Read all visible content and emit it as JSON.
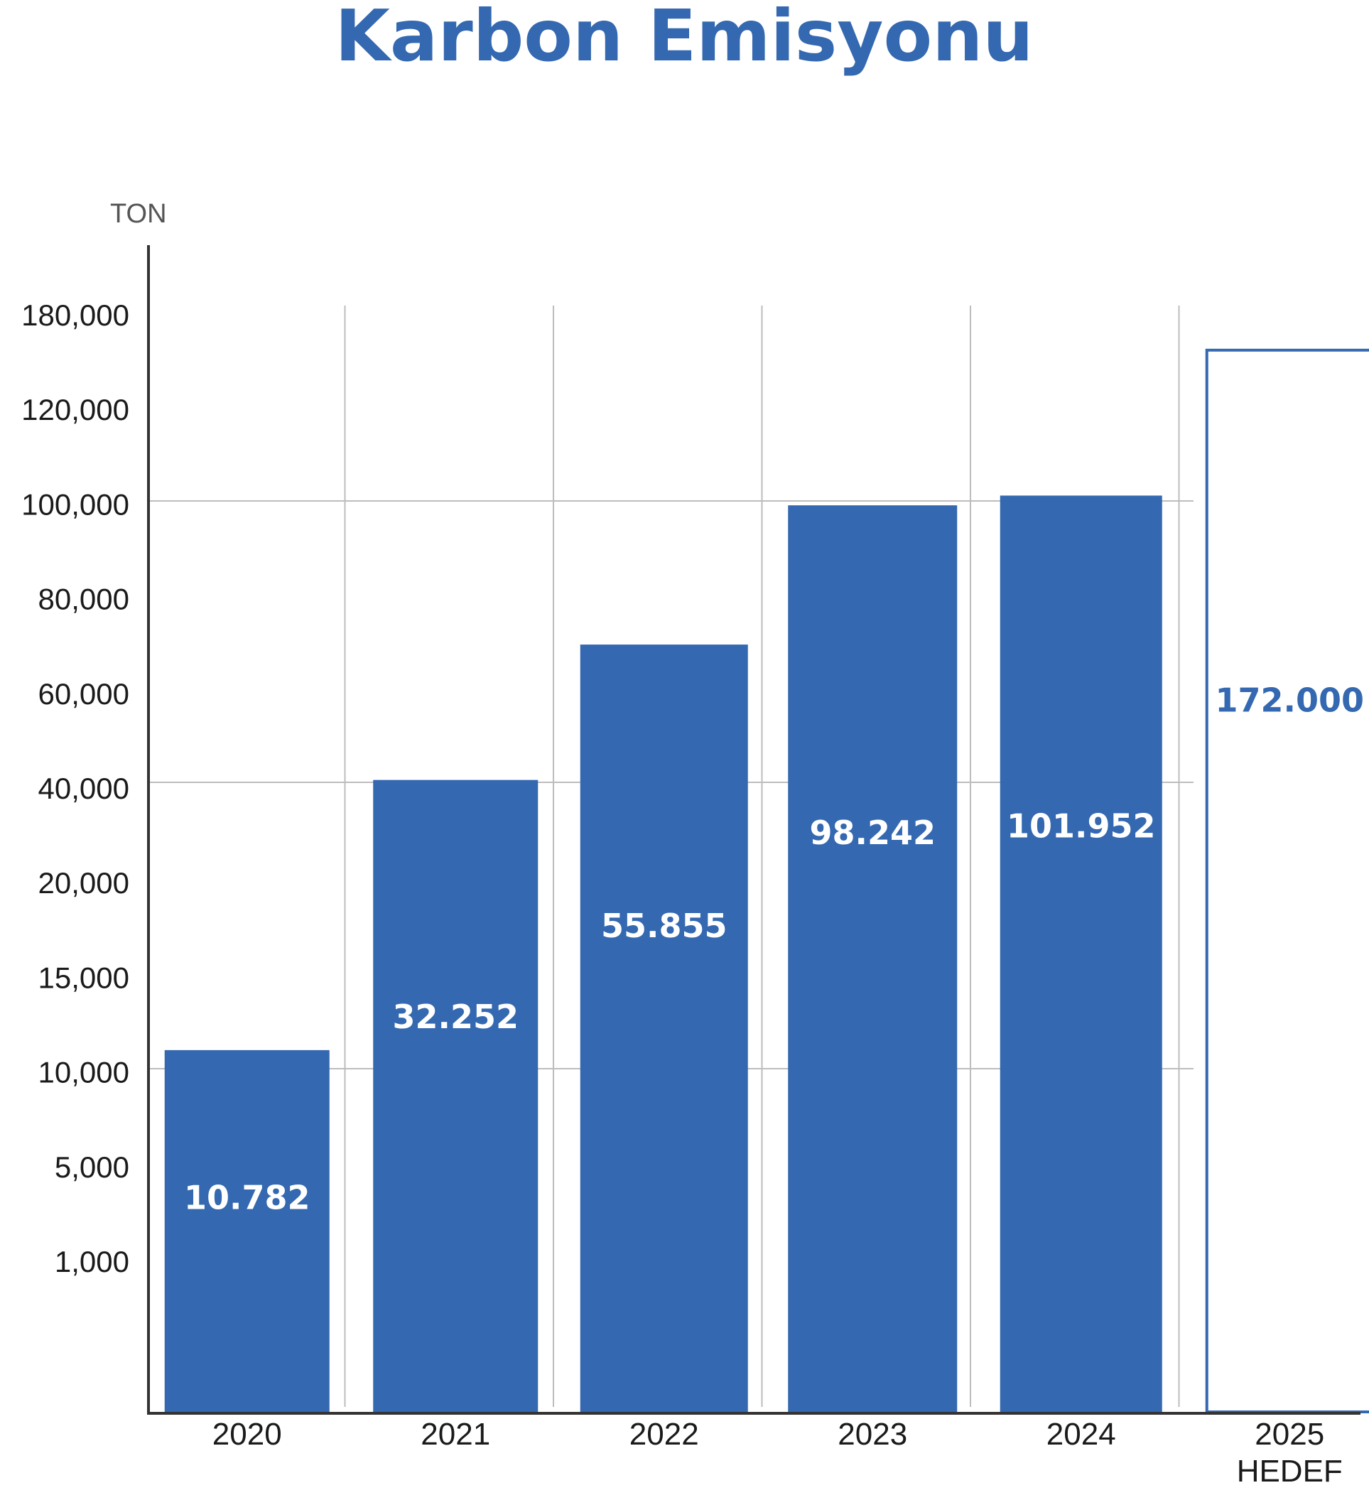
{
  "chart_data": {
    "type": "bar",
    "title": "Karbon Emisyonu",
    "unit_label": "TON",
    "categories": [
      "2020",
      "2021",
      "2022",
      "2023",
      "2024",
      "2025"
    ],
    "category_sublabels": [
      "",
      "",
      "",
      "",
      "",
      "HEDEF"
    ],
    "values": [
      10782,
      32252,
      55855,
      98242,
      101952,
      172000
    ],
    "value_labels": [
      "10.782",
      "32.252",
      "55.855",
      "98.242",
      "101.952",
      "172.000"
    ],
    "bar_styles": [
      "filled",
      "filled",
      "filled",
      "filled",
      "filled",
      "outline"
    ],
    "y_tick_labels": [
      "1,000",
      "5,000",
      "10,000",
      "15,000",
      "20,000",
      "40,000",
      "60,000",
      "80,000",
      "100,000",
      "120,000",
      "180,000"
    ],
    "grid": true,
    "colors": {
      "bar": "#3468b0",
      "title": "#3468b0",
      "grid": "#bdbdbd",
      "axis": "#333333"
    }
  }
}
